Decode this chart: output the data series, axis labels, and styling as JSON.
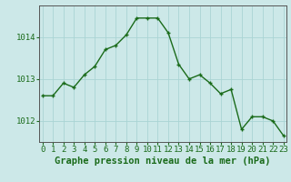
{
  "x": [
    0,
    1,
    2,
    3,
    4,
    5,
    6,
    7,
    8,
    9,
    10,
    11,
    12,
    13,
    14,
    15,
    16,
    17,
    18,
    19,
    20,
    21,
    22,
    23
  ],
  "y": [
    1012.6,
    1012.6,
    1012.9,
    1012.8,
    1013.1,
    1013.3,
    1013.7,
    1013.8,
    1014.05,
    1014.45,
    1014.45,
    1014.45,
    1014.1,
    1013.35,
    1013.0,
    1013.1,
    1012.9,
    1012.65,
    1012.75,
    1011.8,
    1012.1,
    1012.1,
    1012.0,
    1011.65
  ],
  "line_color": "#1a6b1a",
  "marker_color": "#1a6b1a",
  "bg_color": "#cce8e8",
  "grid_color": "#aad4d4",
  "axis_label_color": "#1a6b1a",
  "tick_color": "#1a6b1a",
  "xlabel": "Graphe pression niveau de la mer (hPa)",
  "ylim": [
    1011.5,
    1014.75
  ],
  "yticks": [
    1012,
    1013,
    1014
  ],
  "xticks": [
    0,
    1,
    2,
    3,
    4,
    5,
    6,
    7,
    8,
    9,
    10,
    11,
    12,
    13,
    14,
    15,
    16,
    17,
    18,
    19,
    20,
    21,
    22,
    23
  ],
  "line_width": 1.0,
  "marker_size": 3.5,
  "font_size_xlabel": 7.5,
  "font_size_ticks": 6.5
}
